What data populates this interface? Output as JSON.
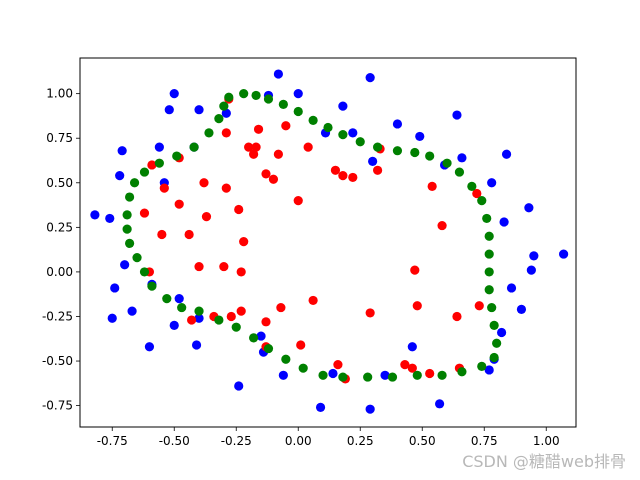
{
  "watermark": "CSDN @糖醋web排骨",
  "chart_data": {
    "type": "scatter",
    "xlim": [
      -0.88,
      1.12
    ],
    "ylim": [
      -0.87,
      1.2
    ],
    "xticks": [
      -0.75,
      -0.5,
      -0.25,
      0.0,
      0.25,
      0.5,
      0.75,
      1.0
    ],
    "yticks": [
      -0.75,
      -0.5,
      -0.25,
      0.0,
      0.25,
      0.5,
      0.75,
      1.0
    ],
    "xtick_labels": [
      "-0.75",
      "-0.50",
      "-0.25",
      "0.00",
      "0.25",
      "0.50",
      "0.75",
      "1.00"
    ],
    "ytick_labels": [
      "-0.75",
      "-0.50",
      "-0.25",
      "0.00",
      "0.25",
      "0.50",
      "0.75",
      "1.00"
    ],
    "grid": false,
    "series": [
      {
        "color": "#0000ff",
        "points": [
          [
            -0.08,
            1.11
          ],
          [
            0.29,
            1.09
          ],
          [
            -0.5,
            1.0
          ],
          [
            -0.12,
            0.99
          ],
          [
            0.0,
            1.0
          ],
          [
            -0.52,
            0.91
          ],
          [
            0.18,
            0.93
          ],
          [
            -0.4,
            0.91
          ],
          [
            0.64,
            0.88
          ],
          [
            -0.29,
            0.89
          ],
          [
            0.4,
            0.83
          ],
          [
            0.11,
            0.78
          ],
          [
            0.22,
            0.78
          ],
          [
            0.49,
            0.76
          ],
          [
            -0.56,
            0.7
          ],
          [
            -0.42,
            0.7
          ],
          [
            -0.71,
            0.68
          ],
          [
            0.3,
            0.62
          ],
          [
            0.66,
            0.64
          ],
          [
            0.84,
            0.66
          ],
          [
            0.59,
            0.6
          ],
          [
            -0.72,
            0.54
          ],
          [
            -0.54,
            0.5
          ],
          [
            0.78,
            0.5
          ],
          [
            -0.82,
            0.32
          ],
          [
            -0.76,
            0.3
          ],
          [
            0.83,
            0.28
          ],
          [
            0.93,
            0.36
          ],
          [
            0.95,
            0.09
          ],
          [
            1.07,
            0.1
          ],
          [
            -0.7,
            0.04
          ],
          [
            0.94,
            0.01
          ],
          [
            -0.74,
            -0.09
          ],
          [
            -0.59,
            -0.07
          ],
          [
            0.86,
            -0.09
          ],
          [
            -0.67,
            -0.22
          ],
          [
            -0.48,
            -0.15
          ],
          [
            -0.4,
            -0.26
          ],
          [
            0.9,
            -0.21
          ],
          [
            -0.75,
            -0.26
          ],
          [
            -0.5,
            -0.3
          ],
          [
            0.82,
            -0.34
          ],
          [
            -0.6,
            -0.42
          ],
          [
            -0.41,
            -0.41
          ],
          [
            -0.15,
            -0.36
          ],
          [
            -0.14,
            -0.45
          ],
          [
            0.46,
            -0.42
          ],
          [
            0.79,
            -0.49
          ],
          [
            0.77,
            -0.55
          ],
          [
            -0.06,
            -0.58
          ],
          [
            0.14,
            -0.57
          ],
          [
            0.35,
            -0.58
          ],
          [
            -0.24,
            -0.64
          ],
          [
            0.09,
            -0.76
          ],
          [
            0.29,
            -0.77
          ],
          [
            0.57,
            -0.74
          ]
        ]
      },
      {
        "color": "#ff0000",
        "points": [
          [
            -0.28,
            0.97
          ],
          [
            -0.05,
            0.82
          ],
          [
            -0.29,
            0.78
          ],
          [
            -0.16,
            0.8
          ],
          [
            -0.48,
            0.64
          ],
          [
            -0.18,
            0.66
          ],
          [
            -0.2,
            0.7
          ],
          [
            -0.17,
            0.7
          ],
          [
            -0.59,
            0.6
          ],
          [
            0.04,
            0.7
          ],
          [
            0.33,
            0.69
          ],
          [
            -0.08,
            0.66
          ],
          [
            0.15,
            0.57
          ],
          [
            0.32,
            0.57
          ],
          [
            0.18,
            0.54
          ],
          [
            0.22,
            0.53
          ],
          [
            -0.13,
            0.55
          ],
          [
            -0.1,
            0.52
          ],
          [
            -0.38,
            0.5
          ],
          [
            -0.29,
            0.47
          ],
          [
            -0.54,
            0.47
          ],
          [
            -0.24,
            0.35
          ],
          [
            0.54,
            0.48
          ],
          [
            0.72,
            0.44
          ],
          [
            0.0,
            0.4
          ],
          [
            -0.48,
            0.38
          ],
          [
            -0.37,
            0.31
          ],
          [
            -0.62,
            0.33
          ],
          [
            -0.44,
            0.21
          ],
          [
            -0.55,
            0.21
          ],
          [
            0.58,
            0.26
          ],
          [
            -0.22,
            0.17
          ],
          [
            -0.4,
            0.03
          ],
          [
            -0.3,
            0.03
          ],
          [
            -0.23,
            0.0
          ],
          [
            0.47,
            0.01
          ],
          [
            -0.6,
            0.0
          ],
          [
            -0.43,
            -0.27
          ],
          [
            -0.34,
            -0.25
          ],
          [
            -0.27,
            -0.25
          ],
          [
            -0.23,
            -0.22
          ],
          [
            0.06,
            -0.16
          ],
          [
            -0.07,
            -0.2
          ],
          [
            -0.13,
            -0.28
          ],
          [
            -0.13,
            -0.42
          ],
          [
            0.01,
            -0.41
          ],
          [
            0.29,
            -0.23
          ],
          [
            0.48,
            -0.19
          ],
          [
            0.64,
            -0.25
          ],
          [
            0.73,
            -0.19
          ],
          [
            0.16,
            -0.52
          ],
          [
            0.43,
            -0.52
          ],
          [
            0.46,
            -0.54
          ],
          [
            0.53,
            -0.57
          ],
          [
            0.65,
            -0.54
          ],
          [
            0.19,
            -0.6
          ]
        ]
      },
      {
        "color": "#008000",
        "points": [
          [
            -0.28,
            0.98
          ],
          [
            -0.22,
            1.0
          ],
          [
            -0.17,
            0.99
          ],
          [
            -0.12,
            0.97
          ],
          [
            -0.06,
            0.94
          ],
          [
            0.0,
            0.9
          ],
          [
            0.06,
            0.85
          ],
          [
            0.12,
            0.81
          ],
          [
            0.18,
            0.77
          ],
          [
            0.25,
            0.73
          ],
          [
            0.32,
            0.7
          ],
          [
            0.4,
            0.68
          ],
          [
            0.47,
            0.67
          ],
          [
            0.53,
            0.65
          ],
          [
            0.6,
            0.61
          ],
          [
            0.65,
            0.56
          ],
          [
            0.7,
            0.48
          ],
          [
            0.74,
            0.4
          ],
          [
            0.76,
            0.3
          ],
          [
            0.77,
            0.2
          ],
          [
            0.77,
            0.1
          ],
          [
            0.77,
            0.0
          ],
          [
            0.77,
            -0.1
          ],
          [
            0.78,
            -0.2
          ],
          [
            0.79,
            -0.3
          ],
          [
            0.8,
            -0.4
          ],
          [
            0.79,
            -0.48
          ],
          [
            0.74,
            -0.53
          ],
          [
            0.66,
            -0.56
          ],
          [
            0.58,
            -0.58
          ],
          [
            0.48,
            -0.58
          ],
          [
            0.38,
            -0.59
          ],
          [
            0.28,
            -0.59
          ],
          [
            0.18,
            -0.59
          ],
          [
            0.1,
            -0.58
          ],
          [
            0.02,
            -0.54
          ],
          [
            -0.05,
            -0.49
          ],
          [
            -0.12,
            -0.43
          ],
          [
            -0.18,
            -0.37
          ],
          [
            -0.25,
            -0.31
          ],
          [
            -0.32,
            -0.27
          ],
          [
            -0.4,
            -0.22
          ],
          [
            -0.47,
            -0.2
          ],
          [
            -0.53,
            -0.15
          ],
          [
            -0.59,
            -0.08
          ],
          [
            -0.62,
            0.0
          ],
          [
            -0.65,
            0.08
          ],
          [
            -0.68,
            0.16
          ],
          [
            -0.69,
            0.24
          ],
          [
            -0.69,
            0.32
          ],
          [
            -0.68,
            0.42
          ],
          [
            -0.66,
            0.5
          ],
          [
            -0.62,
            0.56
          ],
          [
            -0.56,
            0.61
          ],
          [
            -0.49,
            0.65
          ],
          [
            -0.42,
            0.7
          ],
          [
            -0.36,
            0.78
          ],
          [
            -0.32,
            0.86
          ],
          [
            -0.3,
            0.93
          ]
        ]
      }
    ]
  }
}
